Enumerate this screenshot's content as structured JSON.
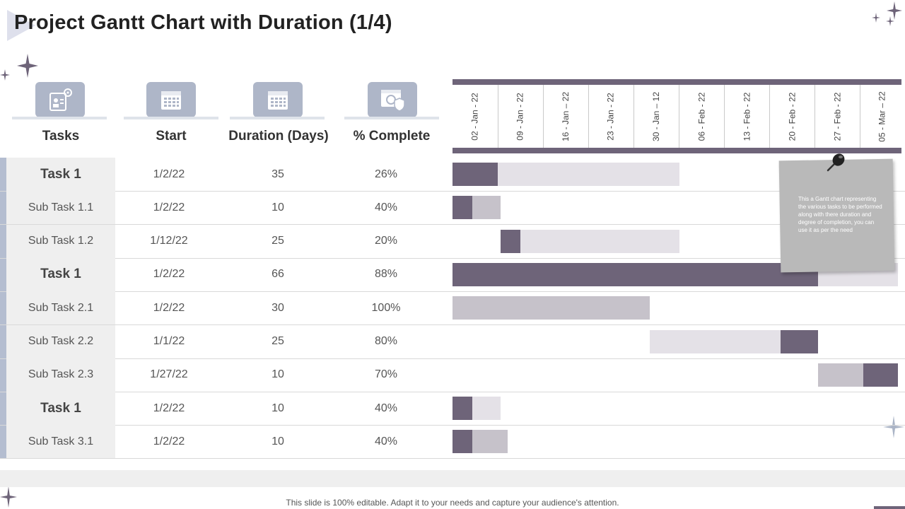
{
  "title": "Project Gantt Chart with Duration (1/4)",
  "colors": {
    "complete": "#6e6479",
    "remaining": "#e4e1e7",
    "full_complete": "#c6c2ca",
    "header_icon_bg": "#aeb6c8",
    "accent": "#b4bdd0"
  },
  "headers": {
    "tasks": "Tasks",
    "start": "Start",
    "duration": "Duration (Days)",
    "complete": "% Complete",
    "icons": [
      "project-settings-icon",
      "calendar-icon",
      "calendar-check-icon",
      "web-shield-icon"
    ]
  },
  "timeline": {
    "dates": [
      "02 - Jan - 22",
      "09 - Jan - 22",
      "16 - Jan – 22",
      "23 - Jan - 22",
      "30 - Jan – 12",
      "06 - Feb - 22",
      "13 - Feb - 22",
      "20 - Feb - 22",
      "27 - Feb - 22",
      "05 - Mar – 22"
    ]
  },
  "rows": [
    {
      "task": "Task 1",
      "bold": true,
      "start": "1/2/22",
      "duration": "35",
      "complete": "26%"
    },
    {
      "task": "Sub Task 1.1",
      "bold": false,
      "start": "1/2/22",
      "duration": "10",
      "complete": "40%"
    },
    {
      "task": "Sub Task 1.2",
      "bold": false,
      "start": "1/12/22",
      "duration": "25",
      "complete": "20%"
    },
    {
      "task": "Task 1",
      "bold": true,
      "start": "1/2/22",
      "duration": "66",
      "complete": "88%"
    },
    {
      "task": "Sub Task 2.1",
      "bold": false,
      "start": "1/2/22",
      "duration": "30",
      "complete": "100%"
    },
    {
      "task": "Sub Task 2.2",
      "bold": false,
      "start": "1/1/22",
      "duration": "25",
      "complete": "80%"
    },
    {
      "task": "Sub Task 2.3",
      "bold": false,
      "start": "1/27/22",
      "duration": "10",
      "complete": "70%"
    },
    {
      "task": "Task 1",
      "bold": true,
      "start": "1/2/22",
      "duration": "10",
      "complete": "40%"
    },
    {
      "task": "Sub Task 3.1",
      "bold": false,
      "start": "1/2/22",
      "duration": "10",
      "complete": "40%"
    }
  ],
  "note": "This a Gantt chart representing the various tasks to be performed along with there duration and degree of completion, you can use it as per the need",
  "footer": "This slide is 100% editable. Adapt it to your needs and capture your audience's attention."
}
